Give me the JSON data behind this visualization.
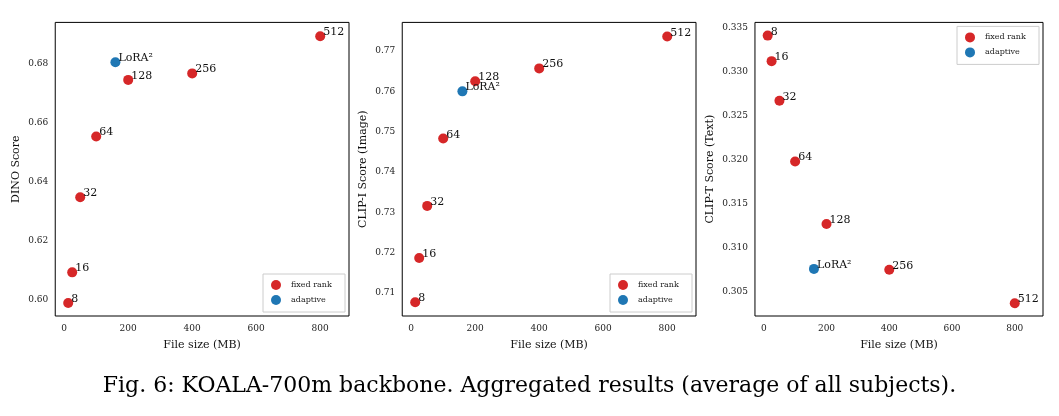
{
  "chart_data": [
    {
      "type": "scatter",
      "xlabel": "File size (MB)",
      "ylabel": "DINO Score",
      "xlim": [
        -28,
        890
      ],
      "xticks": [
        0,
        200,
        400,
        600,
        800
      ],
      "ylim": [
        0.5943,
        0.6939
      ],
      "yticks": [
        {
          "value": 0.6,
          "label": "0.60"
        },
        0.62,
        0.64,
        0.66,
        0.68
      ],
      "grid": false,
      "legend": "bottom right",
      "marker": "circle",
      "series": [
        {
          "name": "fixed rank",
          "color": "#d62728",
          "x": [
            12.5,
            25,
            50,
            100,
            200,
            400,
            800
          ],
          "values": [
            0.5987,
            0.6091,
            0.6346,
            0.6552,
            0.6744,
            0.6766,
            0.6892
          ]
        },
        {
          "name": "adaptive",
          "color": "#1f77b4",
          "x": [
            160
          ],
          "values": [
            0.6804
          ]
        }
      ],
      "annotations": [
        {
          "text": "8",
          "x": 12.5,
          "y": 0.5987
        },
        {
          "text": "16",
          "x": 25,
          "y": 0.6091
        },
        {
          "text": "32",
          "x": 50,
          "y": 0.6346
        },
        {
          "text": "64",
          "x": 100,
          "y": 0.6552
        },
        {
          "text": "128",
          "x": 200,
          "y": 0.6744
        },
        {
          "text": "256",
          "x": 400,
          "y": 0.6766
        },
        {
          "text": "512",
          "x": 800,
          "y": 0.6892
        },
        {
          "text": "LoRA²",
          "x": 160,
          "y": 0.6804
        },
        "Fig. 6: KOALA-700m backbone. Aggregated results (average of all subjects)."
      ]
    },
    {
      "type": "scatter",
      "xlabel": "File size (MB)",
      "ylabel": "CLIP-I Score (Image)",
      "xlim": [
        -28,
        890
      ],
      "xticks": [
        0,
        200,
        400,
        600,
        800
      ],
      "ylim": [
        0.7043,
        0.7771
      ],
      "yticks": [
        0.71,
        0.72,
        0.73,
        0.74,
        0.75,
        0.76,
        0.77
      ],
      "grid": false,
      "legend": "bottom right",
      "marker": "circle",
      "series": [
        {
          "name": "fixed rank",
          "color": "#d62728",
          "x": [
            12.5,
            25,
            50,
            100,
            200,
            400,
            800
          ],
          "values": [
            0.7077,
            0.7187,
            0.7316,
            0.7483,
            0.7625,
            0.7657,
            0.7736
          ]
        },
        {
          "name": "adaptive",
          "color": "#1f77b4",
          "x": [
            160
          ],
          "values": [
            0.76
          ]
        }
      ],
      "annotations": [
        {
          "text": "8",
          "x": 12.5,
          "y": 0.7077
        },
        {
          "text": "16",
          "x": 25,
          "y": 0.7187
        },
        {
          "text": "32",
          "x": 50,
          "y": 0.7316
        },
        {
          "text": "64",
          "x": 100,
          "y": 0.7483
        },
        {
          "text": "128",
          "x": 200,
          "y": 0.7625
        },
        {
          "text": "256",
          "x": 400,
          "y": 0.7657
        },
        {
          "text": "512",
          "x": 800,
          "y": 0.7736
        },
        {
          "text": "LoRA²",
          "x": 160,
          "y": 0.76
        }
      ]
    },
    {
      "type": "scatter",
      "xlabel": "File size (MB)",
      "ylabel": "CLIP-T Score (Text)",
      "xlim": [
        -28,
        890
      ],
      "xticks": [
        0,
        200,
        400,
        600,
        800
      ],
      "ylim": [
        0.30225,
        0.3356
      ],
      "yticks": [
        0.305,
        {
          "value": 0.31,
          "label": "0.310"
        },
        0.315,
        {
          "value": 0.32,
          "label": "0.320"
        },
        0.325,
        {
          "value": 0.33,
          "label": "0.330"
        },
        0.335
      ],
      "grid": false,
      "legend": "top right",
      "marker": "circle",
      "series": [
        {
          "name": "fixed rank",
          "color": "#d62728",
          "x": [
            12.5,
            25,
            50,
            100,
            200,
            400,
            800
          ],
          "values": [
            0.3341,
            0.3312,
            0.3267,
            0.3198,
            0.3127,
            0.3075,
            0.3037
          ]
        },
        {
          "name": "adaptive",
          "color": "#1f77b4",
          "x": [
            160
          ],
          "values": [
            0.3076
          ]
        }
      ],
      "annotations": [
        {
          "text": "8",
          "x": 12.5,
          "y": 0.3341
        },
        {
          "text": "16",
          "x": 25,
          "y": 0.3312
        },
        {
          "text": "32",
          "x": 50,
          "y": 0.3267
        },
        {
          "text": "64",
          "x": 100,
          "y": 0.3198
        },
        {
          "text": "128",
          "x": 200,
          "y": 0.3127
        },
        {
          "text": "256",
          "x": 400,
          "y": 0.3075
        },
        {
          "text": "512",
          "x": 800,
          "y": 0.3037
        },
        {
          "text": "LoRA²",
          "x": 160,
          "y": 0.3076
        }
      ]
    }
  ]
}
